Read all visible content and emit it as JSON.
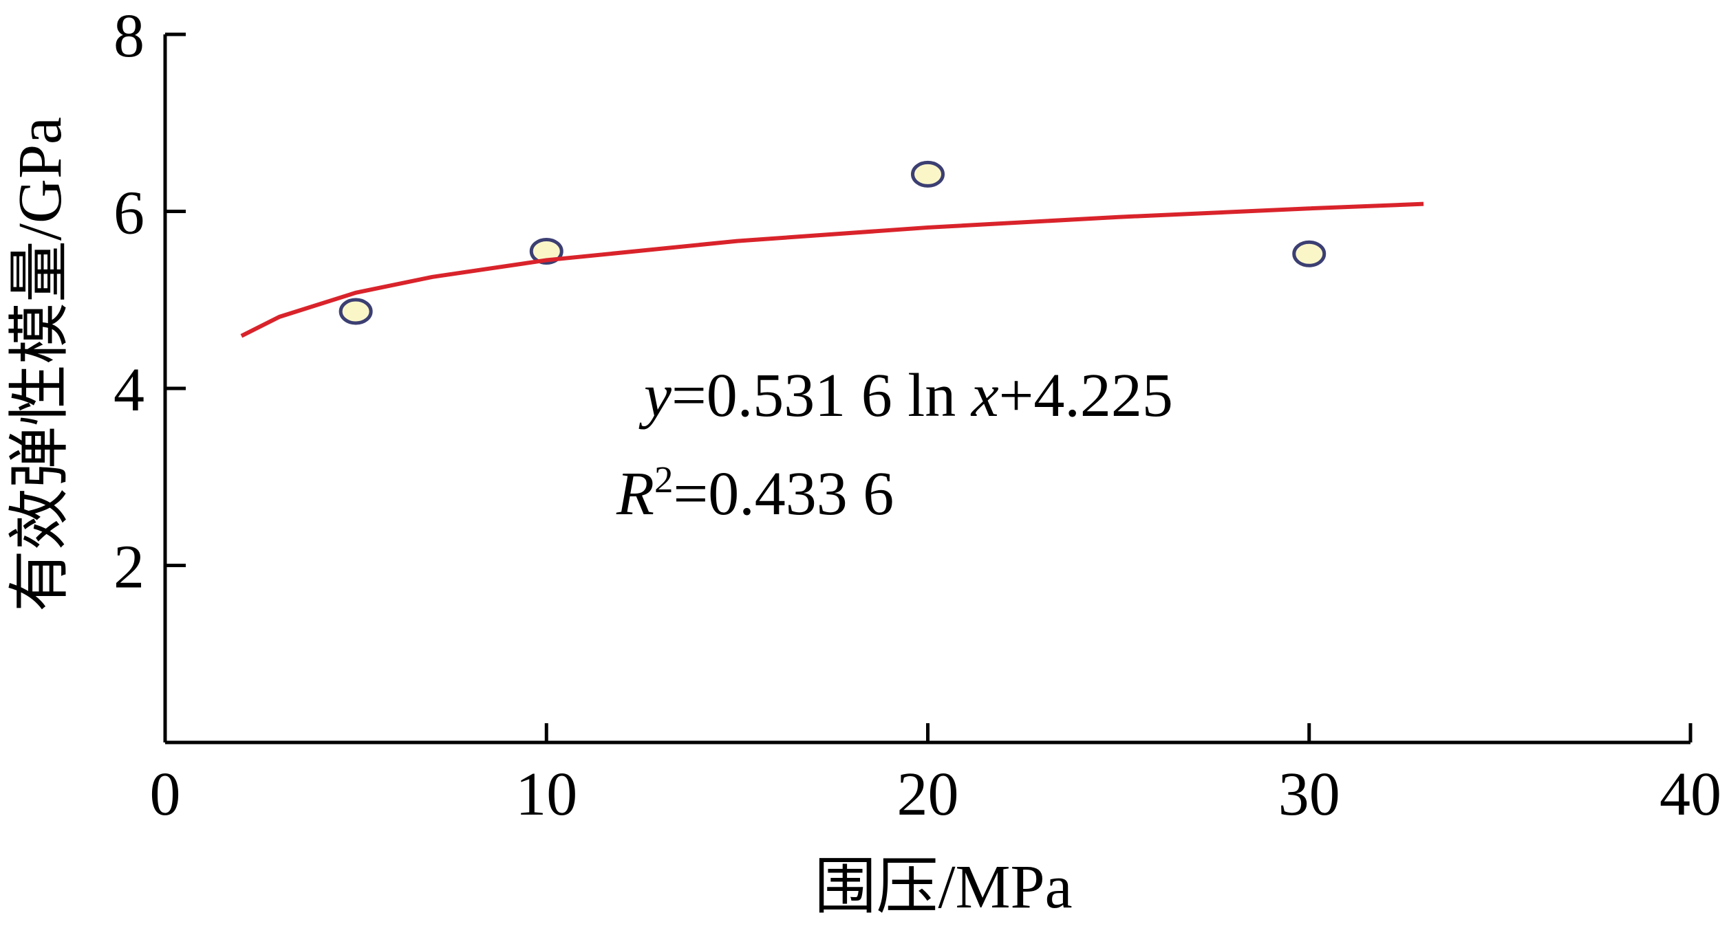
{
  "chart_data": {
    "type": "scatter",
    "xlabel": "围压/MPa",
    "ylabel": "有效弹性模量/GPa",
    "xlim": [
      0,
      40
    ],
    "ylim": [
      0,
      8
    ],
    "xticks": [
      0,
      10,
      20,
      30,
      40
    ],
    "yticks": [
      2,
      4,
      6,
      8
    ],
    "series": [
      {
        "type": "scatter",
        "color": "#fbf6c8",
        "edgecolor": "#3c3f72",
        "x": [
          5,
          10,
          20,
          30
        ],
        "values": [
          4.87,
          5.55,
          6.42,
          5.52
        ]
      },
      {
        "type": "line",
        "color": "#d9232b",
        "x": [
          2,
          3,
          5,
          7,
          10,
          15,
          20,
          25,
          30,
          33
        ],
        "values": [
          4.593,
          4.809,
          5.081,
          5.259,
          5.449,
          5.665,
          5.818,
          5.936,
          6.033,
          6.084
        ]
      }
    ],
    "annotations": [
      [
        "y",
        "=0.531 6 ln ",
        "x",
        "+4.225"
      ],
      [
        "R",
        "2",
        "=0.433 6"
      ]
    ]
  }
}
